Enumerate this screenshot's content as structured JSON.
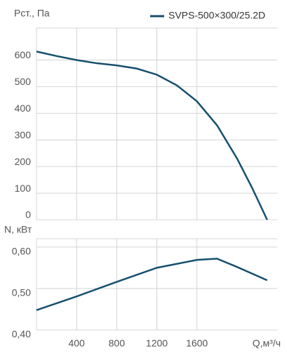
{
  "chart_data": [
    {
      "type": "line",
      "y_label": "Pст., Па",
      "x": [
        0,
        200,
        400,
        600,
        800,
        1000,
        1200,
        1400,
        1600,
        1800,
        2000,
        2150,
        2300
      ],
      "series": [
        {
          "name": "SVPS-500×300/25.2D",
          "color": "#16506e",
          "values": [
            632,
            615,
            600,
            588,
            580,
            568,
            545,
            505,
            445,
            355,
            230,
            120,
            0
          ]
        }
      ],
      "xlim": [
        0,
        2400
      ],
      "xticks": [
        400,
        800,
        1200,
        1600
      ],
      "ylim": [
        0,
        720
      ],
      "yticks": [
        0,
        100,
        200,
        300,
        400,
        500,
        600
      ],
      "grid": true
    },
    {
      "type": "line",
      "y_label": "N, кВт",
      "x_label": "Q,м³/ч",
      "x": [
        0,
        400,
        800,
        1200,
        1600,
        1800,
        2000,
        2300
      ],
      "series": [
        {
          "name": "SVPS-500×300/25.2D",
          "color": "#16506e",
          "values": [
            0.448,
            0.481,
            0.516,
            0.55,
            0.569,
            0.572,
            0.552,
            0.52
          ]
        }
      ],
      "xlim": [
        0,
        2400
      ],
      "xticks": [
        400,
        800,
        1200,
        1600
      ],
      "ylim": [
        0.4,
        0.62
      ],
      "yticks": [
        {
          "value": 0.4,
          "label": "0,40"
        },
        {
          "value": 0.5,
          "label": "0,50"
        },
        {
          "value": 0.6,
          "label": "0,60"
        }
      ],
      "grid": true
    }
  ]
}
